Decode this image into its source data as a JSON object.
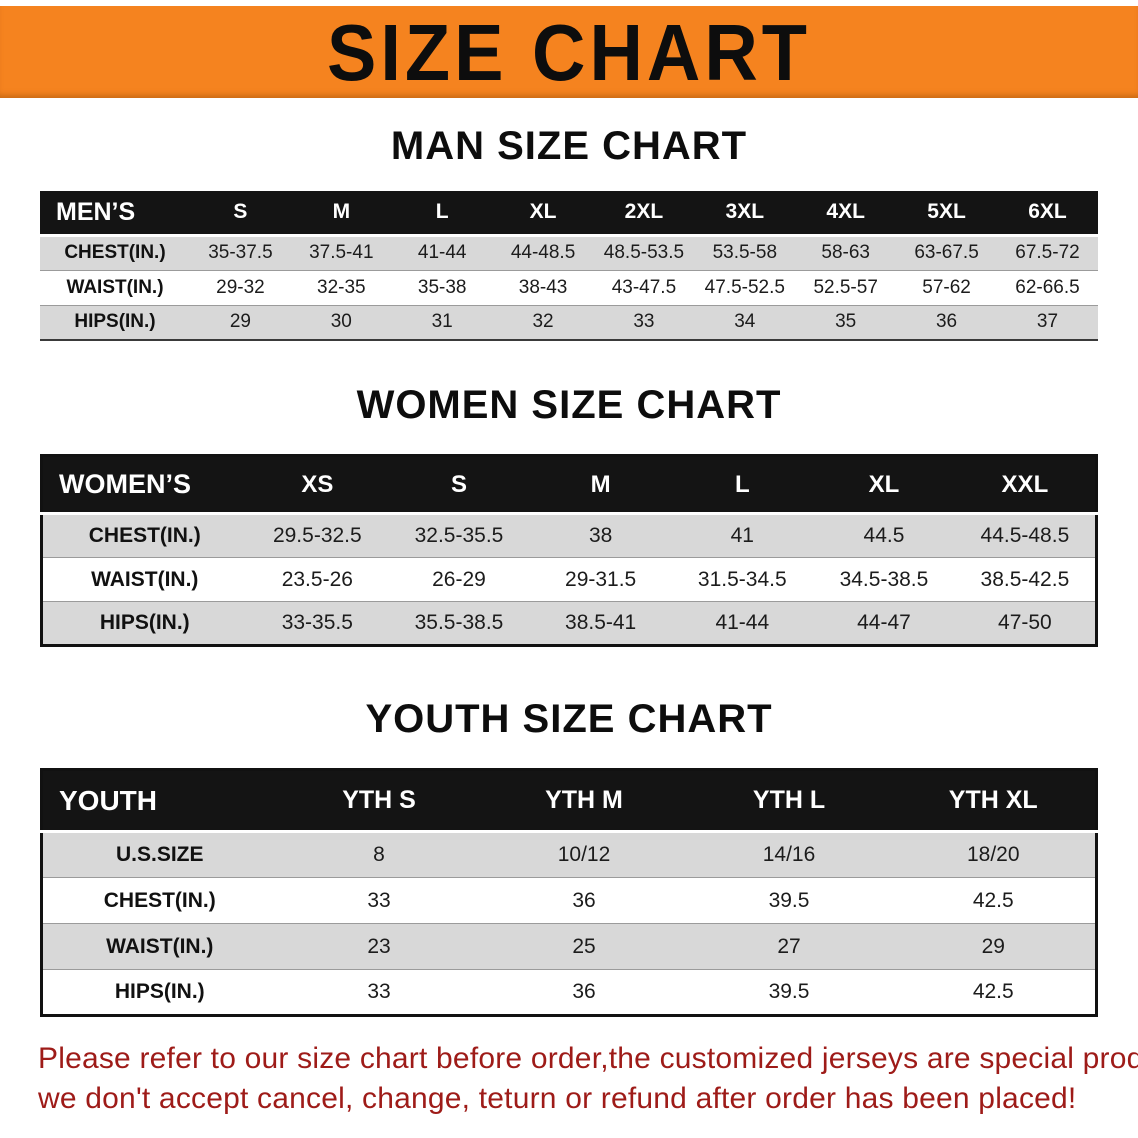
{
  "colors": {
    "banner_bg": "#f5831f",
    "header_bg": "#141414",
    "row_alt_bg": "#d8d8d8",
    "disclaimer_text": "#9e1b18"
  },
  "banner": {
    "title": "SIZE CHART"
  },
  "sections": [
    {
      "heading": "MAN SIZE CHART",
      "table": {
        "header": [
          "MEN’S",
          "S",
          "M",
          "L",
          "XL",
          "2XL",
          "3XL",
          "4XL",
          "5XL",
          "6XL"
        ],
        "rows": [
          [
            "CHEST(IN.)",
            "35-37.5",
            "37.5-41",
            "41-44",
            "44-48.5",
            "48.5-53.5",
            "53.5-58",
            "58-63",
            "63-67.5",
            "67.5-72"
          ],
          [
            "WAIST(IN.)",
            "29-32",
            "32-35",
            "35-38",
            "38-43",
            "43-47.5",
            "47.5-52.5",
            "52.5-57",
            "57-62",
            "62-66.5"
          ],
          [
            "HIPS(IN.)",
            "29",
            "30",
            "31",
            "32",
            "33",
            "34",
            "35",
            "36",
            "37"
          ]
        ]
      }
    },
    {
      "heading": "WOMEN SIZE CHART",
      "table": {
        "header": [
          "WOMEN’S",
          "XS",
          "S",
          "M",
          "L",
          "XL",
          "XXL"
        ],
        "rows": [
          [
            "CHEST(IN.)",
            "29.5-32.5",
            "32.5-35.5",
            "38",
            "41",
            "44.5",
            "44.5-48.5"
          ],
          [
            "WAIST(IN.)",
            "23.5-26",
            "26-29",
            "29-31.5",
            "31.5-34.5",
            "34.5-38.5",
            "38.5-42.5"
          ],
          [
            "HIPS(IN.)",
            "33-35.5",
            "35.5-38.5",
            "38.5-41",
            "41-44",
            "44-47",
            "47-50"
          ]
        ]
      }
    },
    {
      "heading": "YOUTH SIZE CHART",
      "table": {
        "header": [
          "YOUTH",
          "YTH S",
          "YTH M",
          "YTH L",
          "YTH XL"
        ],
        "rows": [
          [
            "U.S.SIZE",
            "8",
            "10/12",
            "14/16",
            "18/20"
          ],
          [
            "CHEST(IN.)",
            "33",
            "36",
            "39.5",
            "42.5"
          ],
          [
            "WAIST(IN.)",
            "23",
            "25",
            "27",
            "29"
          ],
          [
            "HIPS(IN.)",
            "33",
            "36",
            "39.5",
            "42.5"
          ]
        ]
      }
    }
  ],
  "disclaimer": {
    "line1": "Please refer to our size chart before order,the customized jerseys are special products,",
    "line2": "we don't accept cancel, change, teturn or refund after order has been placed!"
  }
}
